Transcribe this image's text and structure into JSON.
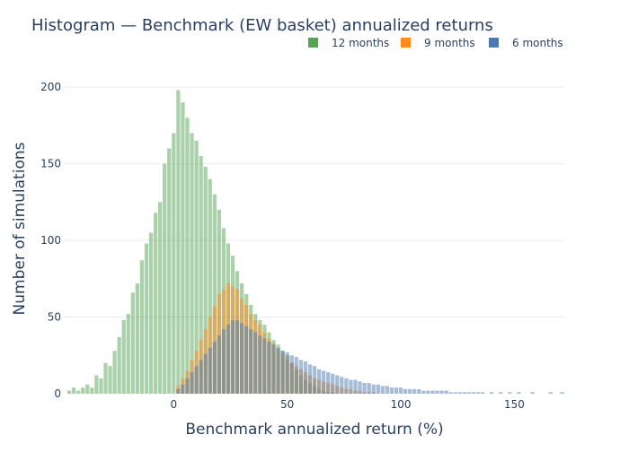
{
  "chart_data": {
    "type": "bar",
    "barmode": "overlay",
    "title": "Histogram — Benchmark (EW basket) annualized returns",
    "xlabel": "Benchmark annualized return (%)",
    "ylabel": "Number of simulations",
    "xlim": [
      -48,
      172
    ],
    "ylim": [
      0,
      210
    ],
    "x_ticks": [
      0,
      50,
      100,
      150
    ],
    "y_ticks": [
      0,
      50,
      100,
      150,
      200
    ],
    "grid": true,
    "legend_position": "top-right",
    "series": [
      {
        "name": "12 months",
        "color": "#57a455",
        "points": [
          [
            -46,
            2
          ],
          [
            -44,
            4
          ],
          [
            -42,
            2
          ],
          [
            -40,
            4
          ],
          [
            -38,
            6
          ],
          [
            -36,
            4
          ],
          [
            -34,
            12
          ],
          [
            -32,
            10
          ],
          [
            -30,
            20
          ],
          [
            -28,
            18
          ],
          [
            -26,
            28
          ],
          [
            -24,
            37
          ],
          [
            -22,
            48
          ],
          [
            -20,
            52
          ],
          [
            -18,
            66
          ],
          [
            -16,
            72
          ],
          [
            -14,
            87
          ],
          [
            -12,
            98
          ],
          [
            -10,
            105
          ],
          [
            -8,
            118
          ],
          [
            -6,
            125
          ],
          [
            -4,
            150
          ],
          [
            -2,
            160
          ],
          [
            0,
            170
          ],
          [
            2,
            198
          ],
          [
            4,
            190
          ],
          [
            6,
            180
          ],
          [
            8,
            170
          ],
          [
            10,
            165
          ],
          [
            12,
            155
          ],
          [
            14,
            148
          ],
          [
            16,
            140
          ],
          [
            18,
            130
          ],
          [
            20,
            120
          ],
          [
            22,
            108
          ],
          [
            24,
            98
          ],
          [
            26,
            90
          ],
          [
            28,
            80
          ],
          [
            30,
            72
          ],
          [
            32,
            65
          ],
          [
            34,
            58
          ],
          [
            36,
            52
          ],
          [
            38,
            48
          ],
          [
            40,
            45
          ],
          [
            42,
            40
          ],
          [
            44,
            35
          ],
          [
            46,
            32
          ],
          [
            48,
            28
          ],
          [
            50,
            25
          ],
          [
            52,
            20
          ],
          [
            54,
            16
          ],
          [
            56,
            12
          ],
          [
            58,
            9
          ],
          [
            60,
            7
          ],
          [
            62,
            5
          ],
          [
            64,
            3
          ],
          [
            66,
            2
          ],
          [
            68,
            1
          ],
          [
            70,
            1
          ]
        ]
      },
      {
        "name": "9 months",
        "color": "#ff8c21",
        "points": [
          [
            2,
            5
          ],
          [
            4,
            10
          ],
          [
            6,
            15
          ],
          [
            8,
            22
          ],
          [
            10,
            28
          ],
          [
            12,
            35
          ],
          [
            14,
            42
          ],
          [
            16,
            50
          ],
          [
            18,
            57
          ],
          [
            20,
            65
          ],
          [
            22,
            68
          ],
          [
            24,
            72
          ],
          [
            26,
            70
          ],
          [
            28,
            68
          ],
          [
            30,
            62
          ],
          [
            32,
            58
          ],
          [
            34,
            52
          ],
          [
            36,
            48
          ],
          [
            38,
            45
          ],
          [
            40,
            40
          ],
          [
            42,
            36
          ],
          [
            44,
            33
          ],
          [
            46,
            29
          ],
          [
            48,
            26
          ],
          [
            50,
            23
          ],
          [
            52,
            20
          ],
          [
            54,
            18
          ],
          [
            56,
            16
          ],
          [
            58,
            14
          ],
          [
            60,
            12
          ],
          [
            62,
            10
          ],
          [
            64,
            9
          ],
          [
            66,
            8
          ],
          [
            68,
            7
          ],
          [
            70,
            6
          ],
          [
            72,
            5
          ],
          [
            74,
            4
          ],
          [
            76,
            3
          ],
          [
            78,
            3
          ],
          [
            80,
            2
          ],
          [
            82,
            2
          ],
          [
            84,
            1
          ],
          [
            86,
            1
          ],
          [
            88,
            1
          ]
        ]
      },
      {
        "name": "6 months",
        "color": "#4d79b0",
        "points": [
          [
            2,
            3
          ],
          [
            4,
            6
          ],
          [
            6,
            10
          ],
          [
            8,
            14
          ],
          [
            10,
            18
          ],
          [
            12,
            22
          ],
          [
            14,
            26
          ],
          [
            16,
            30
          ],
          [
            18,
            34
          ],
          [
            20,
            38
          ],
          [
            22,
            42
          ],
          [
            24,
            45
          ],
          [
            26,
            48
          ],
          [
            28,
            48
          ],
          [
            30,
            46
          ],
          [
            32,
            44
          ],
          [
            34,
            42
          ],
          [
            36,
            40
          ],
          [
            38,
            38
          ],
          [
            40,
            36
          ],
          [
            42,
            34
          ],
          [
            44,
            32
          ],
          [
            46,
            30
          ],
          [
            48,
            28
          ],
          [
            50,
            27
          ],
          [
            52,
            25
          ],
          [
            54,
            24
          ],
          [
            56,
            22
          ],
          [
            58,
            21
          ],
          [
            60,
            19
          ],
          [
            62,
            18
          ],
          [
            64,
            16
          ],
          [
            66,
            15
          ],
          [
            68,
            14
          ],
          [
            70,
            13
          ],
          [
            72,
            12
          ],
          [
            74,
            11
          ],
          [
            76,
            10
          ],
          [
            78,
            9
          ],
          [
            80,
            9
          ],
          [
            82,
            8
          ],
          [
            84,
            7
          ],
          [
            86,
            7
          ],
          [
            88,
            6
          ],
          [
            90,
            6
          ],
          [
            92,
            5
          ],
          [
            94,
            5
          ],
          [
            96,
            4
          ],
          [
            98,
            4
          ],
          [
            100,
            4
          ],
          [
            102,
            3
          ],
          [
            104,
            3
          ],
          [
            106,
            3
          ],
          [
            108,
            3
          ],
          [
            110,
            2
          ],
          [
            112,
            2
          ],
          [
            114,
            2
          ],
          [
            116,
            2
          ],
          [
            118,
            2
          ],
          [
            120,
            2
          ],
          [
            122,
            1
          ],
          [
            124,
            1
          ],
          [
            126,
            1
          ],
          [
            128,
            1
          ],
          [
            130,
            1
          ],
          [
            132,
            1
          ],
          [
            134,
            1
          ],
          [
            136,
            1
          ],
          [
            140,
            1
          ],
          [
            144,
            1
          ],
          [
            148,
            1
          ],
          [
            152,
            1
          ],
          [
            158,
            1
          ],
          [
            166,
            1
          ],
          [
            171,
            1
          ]
        ]
      }
    ]
  }
}
